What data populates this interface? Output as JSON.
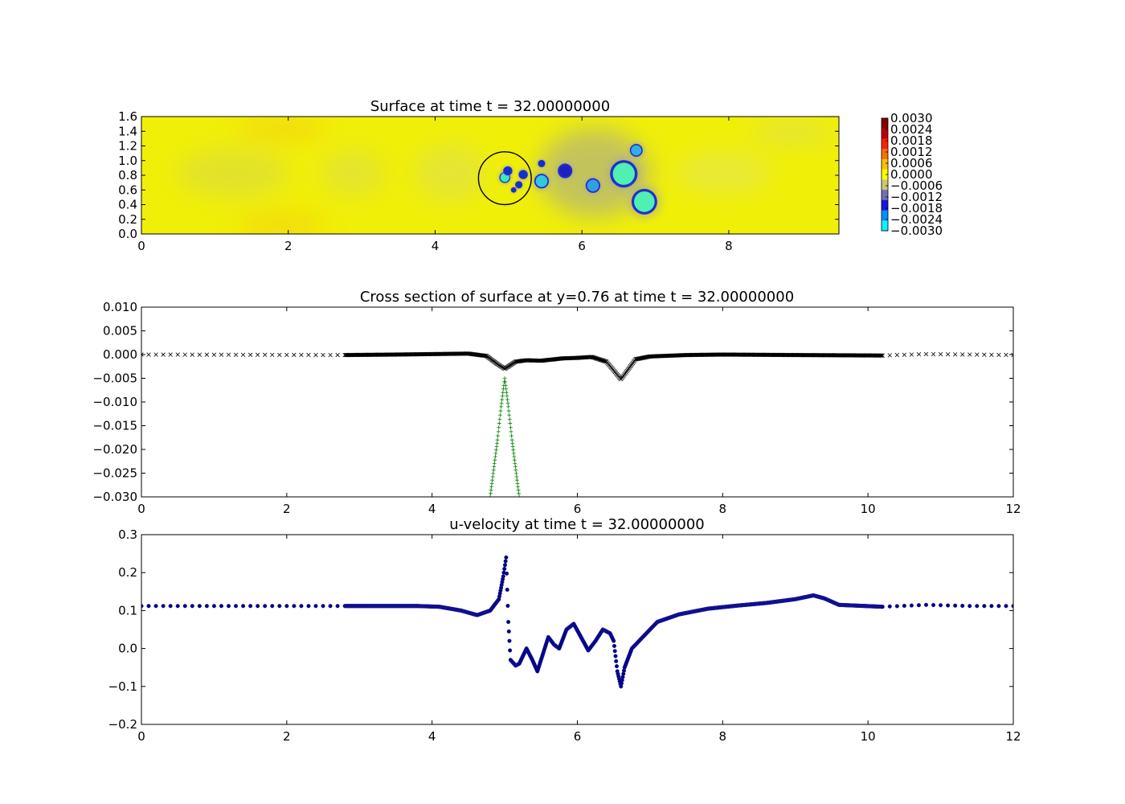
{
  "chart_data": [
    {
      "type": "heatmap",
      "title": "Surface at time t =    32.00000000",
      "xlim": [
        0,
        9.5
      ],
      "ylim": [
        0,
        1.6
      ],
      "xticks": [
        "0",
        "2",
        "4",
        "6",
        "8"
      ],
      "yticks": [
        "0.0",
        "0.2",
        "0.4",
        "0.6",
        "0.8",
        "1.0",
        "1.2",
        "1.4",
        "1.6"
      ],
      "background_color": "#f0ef08",
      "colorbar": {
        "ticks": [
          "0.0030",
          "0.0024",
          "0.0018",
          "0.0012",
          "0.0006",
          "0.0000",
          "−0.0006",
          "−0.0012",
          "−0.0018",
          "−0.0024",
          "−0.0030"
        ],
        "values": [
          0.003,
          0.0024,
          0.0018,
          0.0012,
          0.0006,
          0.0,
          -0.0006,
          -0.0012,
          -0.0018,
          -0.0024,
          -0.003
        ],
        "colors": [
          "#800000",
          "#c00000",
          "#ff2000",
          "#ff7000",
          "#ffc000",
          "#ffff00",
          "#c8c878",
          "#7070b8",
          "#1818e0",
          "#0090ff",
          "#10f0ff"
        ]
      },
      "circle": {
        "center": [
          4.95,
          0.76
        ],
        "radius": 0.36,
        "color": "#000000"
      },
      "depressions": [
        {
          "x": 4.95,
          "y": 0.77,
          "r": 0.06,
          "color": "#30f0c0"
        },
        {
          "x": 4.99,
          "y": 0.86,
          "r": 0.05,
          "color": "#1030d0"
        },
        {
          "x": 5.2,
          "y": 0.81,
          "r": 0.05,
          "color": "#1030d0"
        },
        {
          "x": 5.14,
          "y": 0.67,
          "r": 0.04,
          "color": "#1030d0"
        },
        {
          "x": 5.07,
          "y": 0.6,
          "r": 0.03,
          "color": "#1030d0"
        },
        {
          "x": 5.45,
          "y": 0.96,
          "r": 0.04,
          "color": "#1030d0"
        },
        {
          "x": 5.45,
          "y": 0.72,
          "r": 0.08,
          "color": "#30c8e0"
        },
        {
          "x": 5.77,
          "y": 0.86,
          "r": 0.08,
          "color": "#2020c0"
        },
        {
          "x": 6.15,
          "y": 0.66,
          "r": 0.08,
          "color": "#30a0e0"
        },
        {
          "x": 6.57,
          "y": 0.82,
          "r": 0.15,
          "color": "#50f0b0"
        },
        {
          "x": 6.74,
          "y": 1.14,
          "r": 0.07,
          "color": "#30b0e0"
        },
        {
          "x": 6.85,
          "y": 0.44,
          "r": 0.14,
          "color": "#50f0b0"
        }
      ]
    },
    {
      "type": "scatter",
      "title": "Cross section of surface at y=0.76 at time t =    32.00000000",
      "xlim": [
        0,
        12
      ],
      "ylim": [
        -0.03,
        0.01
      ],
      "xticks": [
        "0",
        "2",
        "4",
        "6",
        "8",
        "10",
        "12"
      ],
      "yticks": [
        "0.010",
        "0.005",
        "0.000",
        "−0.005",
        "−0.010",
        "−0.015",
        "−0.020",
        "−0.025",
        "−0.030"
      ],
      "series": [
        {
          "marker": "x",
          "color": "#000000",
          "points": [
            [
              0,
              0.0
            ],
            [
              2.8,
              -0.0001
            ],
            [
              3.5,
              0.0
            ],
            [
              4.5,
              0.0002
            ],
            [
              4.75,
              -0.0003
            ],
            [
              4.9,
              -0.002
            ],
            [
              5.0,
              -0.003
            ],
            [
              5.15,
              -0.0015
            ],
            [
              5.3,
              -0.0012
            ],
            [
              5.5,
              -0.0013
            ],
            [
              5.8,
              -0.0008
            ],
            [
              6.0,
              -0.0007
            ],
            [
              6.2,
              -0.0005
            ],
            [
              6.4,
              -0.0015
            ],
            [
              6.6,
              -0.0052
            ],
            [
              6.8,
              -0.001
            ],
            [
              7.0,
              -0.0004
            ],
            [
              7.5,
              -0.0001
            ],
            [
              8.0,
              0.0
            ],
            [
              9.0,
              -0.0001
            ],
            [
              10.2,
              -0.0002
            ],
            [
              10.8,
              0.0001
            ],
            [
              12,
              -0.0001
            ]
          ]
        },
        {
          "marker": "+",
          "color": "#007f00",
          "points": [
            [
              4.8,
              -0.03
            ],
            [
              4.9,
              -0.018
            ],
            [
              4.95,
              -0.011
            ],
            [
              5.0,
              -0.005
            ],
            [
              5.05,
              -0.011
            ],
            [
              5.1,
              -0.018
            ],
            [
              5.2,
              -0.03
            ]
          ]
        }
      ]
    },
    {
      "type": "scatter",
      "title": "u-velocity at time t =    32.00000000",
      "xlim": [
        0,
        12
      ],
      "ylim": [
        -0.2,
        0.3
      ],
      "xticks": [
        "0",
        "2",
        "4",
        "6",
        "8",
        "10",
        "12"
      ],
      "yticks": [
        "0.3",
        "0.2",
        "0.1",
        "0.0",
        "−0.1",
        "−0.2"
      ],
      "series": [
        {
          "marker": "o",
          "color": "#00007f",
          "points": [
            [
              0,
              0.112
            ],
            [
              2.8,
              0.112
            ],
            [
              3.8,
              0.112
            ],
            [
              4.1,
              0.11
            ],
            [
              4.4,
              0.1
            ],
            [
              4.62,
              0.088
            ],
            [
              4.8,
              0.1
            ],
            [
              4.92,
              0.13
            ],
            [
              4.98,
              0.19
            ],
            [
              5.02,
              0.24
            ],
            [
              5.05,
              0.07
            ],
            [
              5.08,
              -0.03
            ],
            [
              5.15,
              -0.045
            ],
            [
              5.2,
              -0.04
            ],
            [
              5.3,
              0.0
            ],
            [
              5.38,
              -0.03
            ],
            [
              5.45,
              -0.06
            ],
            [
              5.5,
              -0.03
            ],
            [
              5.6,
              0.03
            ],
            [
              5.68,
              0.01
            ],
            [
              5.75,
              0.0
            ],
            [
              5.85,
              0.05
            ],
            [
              5.95,
              0.065
            ],
            [
              6.05,
              0.03
            ],
            [
              6.15,
              -0.005
            ],
            [
              6.25,
              0.02
            ],
            [
              6.35,
              0.05
            ],
            [
              6.45,
              0.04
            ],
            [
              6.5,
              0.02
            ],
            [
              6.55,
              -0.06
            ],
            [
              6.6,
              -0.1
            ],
            [
              6.65,
              -0.05
            ],
            [
              6.75,
              0.0
            ],
            [
              6.9,
              0.03
            ],
            [
              7.1,
              0.07
            ],
            [
              7.4,
              0.09
            ],
            [
              7.8,
              0.105
            ],
            [
              8.2,
              0.113
            ],
            [
              8.6,
              0.12
            ],
            [
              9.0,
              0.13
            ],
            [
              9.25,
              0.14
            ],
            [
              9.4,
              0.132
            ],
            [
              9.6,
              0.115
            ],
            [
              10.2,
              0.11
            ],
            [
              10.8,
              0.115
            ],
            [
              11.4,
              0.112
            ],
            [
              12,
              0.112
            ]
          ]
        }
      ]
    }
  ]
}
